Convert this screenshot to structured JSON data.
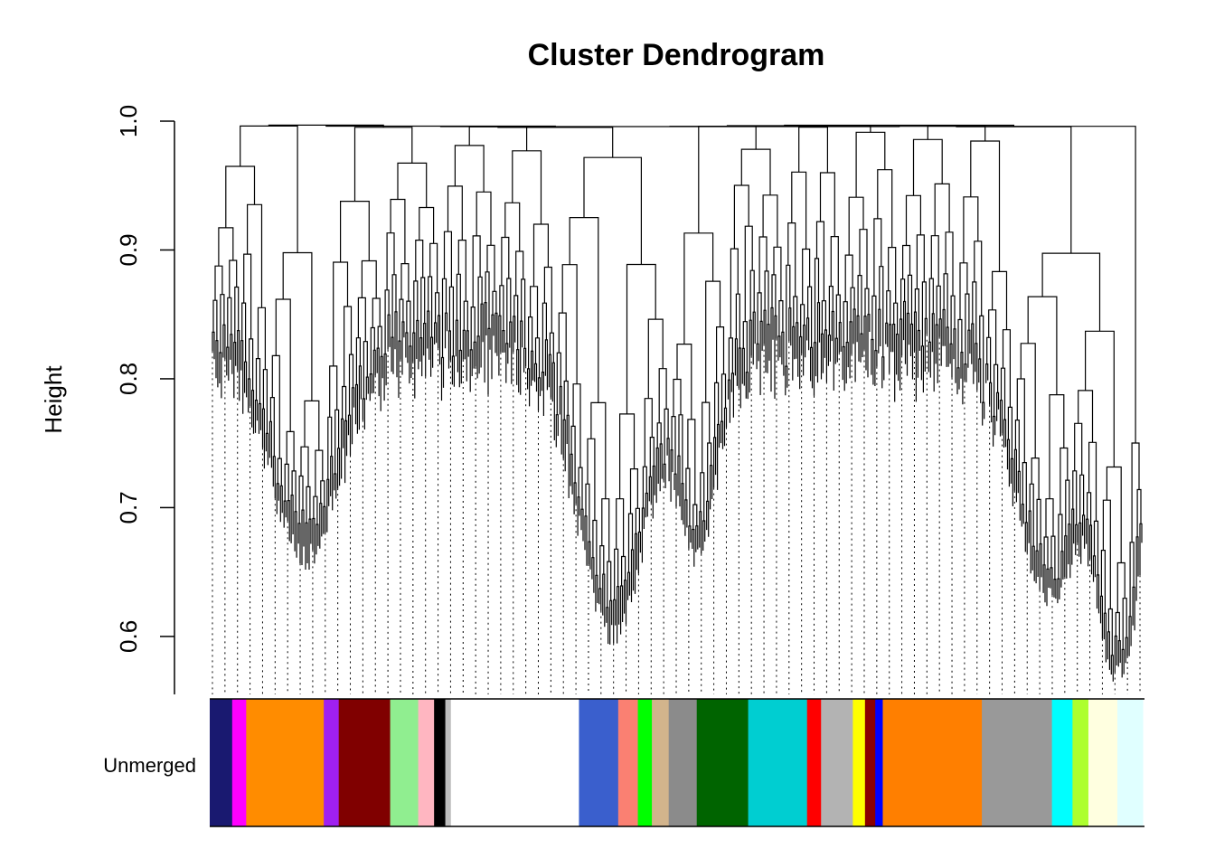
{
  "chart_data": {
    "type": "dendrogram",
    "title": "Cluster Dendrogram",
    "xlabel": "",
    "ylabel": "Height",
    "ylim": [
      0.555,
      1.0
    ],
    "yticks": [
      0.6,
      0.7,
      0.8,
      0.9,
      1.0
    ],
    "ytick_labels": [
      "0.6",
      "0.7",
      "0.8",
      "0.9",
      "1.0"
    ],
    "grid": false,
    "color_row": {
      "label": "Unmerged",
      "segments": [
        {
          "color": "#191970",
          "width": 0.024
        },
        {
          "color": "#ff00ff",
          "width": 0.015
        },
        {
          "color": "#ff8c00",
          "width": 0.083
        },
        {
          "color": "#a020f0",
          "width": 0.016
        },
        {
          "color": "#800000",
          "width": 0.055
        },
        {
          "color": "#90ee90",
          "width": 0.03
        },
        {
          "color": "#ffb6c1",
          "width": 0.017
        },
        {
          "color": "#000000",
          "width": 0.012
        },
        {
          "color": "#bebebe",
          "width": 0.006
        },
        {
          "color": "#ffffff",
          "width": 0.137
        },
        {
          "color": "#3a5fcd",
          "width": 0.042
        },
        {
          "color": "#fa8072",
          "width": 0.021
        },
        {
          "color": "#00ff00",
          "width": 0.015
        },
        {
          "color": "#d2b48c",
          "width": 0.018
        },
        {
          "color": "#8b8b8b",
          "width": 0.03
        },
        {
          "color": "#006400",
          "width": 0.055
        },
        {
          "color": "#00ced1",
          "width": 0.063
        },
        {
          "color": "#ff0000",
          "width": 0.015
        },
        {
          "color": "#b3b3b3",
          "width": 0.034
        },
        {
          "color": "#ffff00",
          "width": 0.013
        },
        {
          "color": "#8b0000",
          "width": 0.011
        },
        {
          "color": "#0000ff",
          "width": 0.008
        },
        {
          "color": "#ff7f00",
          "width": 0.106
        },
        {
          "color": "#999999",
          "width": 0.075
        },
        {
          "color": "#00ffff",
          "width": 0.022
        },
        {
          "color": "#adff2f",
          "width": 0.017
        },
        {
          "color": "#ffffe0",
          "width": 0.031
        },
        {
          "color": "#e0ffff",
          "width": 0.027
        }
      ]
    }
  }
}
